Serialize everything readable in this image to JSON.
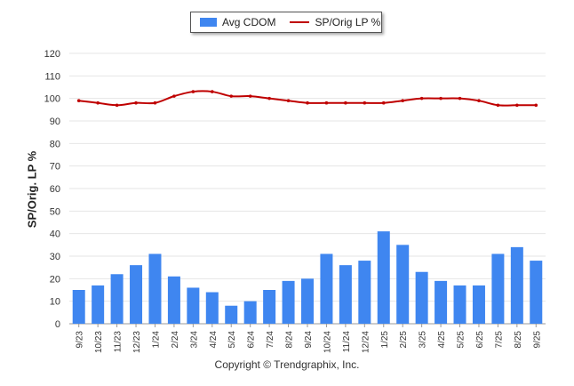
{
  "colors": {
    "bar": "#3f86f0",
    "line": "#bf0000",
    "grid": "#e6e6e6",
    "axis": "#999999"
  },
  "legend": {
    "bar_label": "Avg CDOM",
    "line_label": "SP/Orig LP %"
  },
  "footer": {
    "copyright": "Copyright © Trendgraphix, Inc."
  },
  "chart_data": {
    "type": "bar",
    "ylabel": "SP/Orig. LP %",
    "xlabel": "",
    "ylim": [
      0,
      120
    ],
    "yticks": [
      0,
      10,
      20,
      30,
      40,
      50,
      60,
      70,
      80,
      90,
      100,
      110,
      120
    ],
    "grid": true,
    "legend_position": "top-center",
    "categories": [
      "9/23",
      "10/23",
      "11/23",
      "12/23",
      "1/24",
      "2/24",
      "3/24",
      "4/24",
      "5/24",
      "6/24",
      "7/24",
      "8/24",
      "9/24",
      "10/24",
      "11/24",
      "12/24",
      "1/25",
      "2/25",
      "3/25",
      "4/25",
      "5/25",
      "6/25",
      "7/25",
      "8/25",
      "9/25"
    ],
    "series": [
      {
        "name": "Avg CDOM",
        "type": "bar",
        "values": [
          15,
          17,
          22,
          26,
          31,
          21,
          16,
          14,
          8,
          10,
          15,
          19,
          20,
          31,
          26,
          28,
          41,
          35,
          23,
          19,
          17,
          17,
          31,
          34,
          28
        ]
      },
      {
        "name": "SP/Orig LP %",
        "type": "line",
        "values": [
          99,
          98,
          97,
          98,
          98,
          101,
          103,
          103,
          101,
          101,
          100,
          99,
          98,
          98,
          98,
          98,
          98,
          99,
          100,
          100,
          100,
          99,
          97,
          97,
          97
        ]
      }
    ]
  }
}
